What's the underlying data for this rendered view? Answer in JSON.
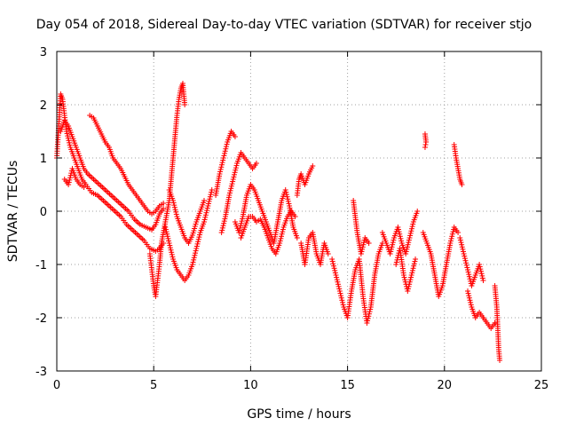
{
  "chart_data": {
    "type": "scatter",
    "title": "Day 054 of 2018, Sidereal Day-to-day VTEC variation (SDTVAR) for receiver stjo",
    "xlabel": "GPS time / hours",
    "ylabel": "SDTVAR / TECUs",
    "xlim": [
      0,
      25
    ],
    "ylim": [
      -3,
      3
    ],
    "xticks": [
      "0",
      "5",
      "10",
      "15",
      "20",
      "25"
    ],
    "yticks": [
      "3",
      "2",
      "1",
      "0",
      "-1",
      "-2",
      "-3"
    ],
    "grid": true,
    "marker": "+",
    "series": [
      {
        "name": "SDTVAR",
        "color": "#ff0000",
        "segments": [
          [
            [
              0.0,
              1.0
            ],
            [
              0.1,
              1.6
            ],
            [
              0.2,
              2.2
            ],
            [
              0.3,
              2.1
            ],
            [
              0.4,
              1.8
            ],
            [
              0.5,
              1.5
            ],
            [
              0.7,
              1.2
            ],
            [
              0.9,
              1.0
            ],
            [
              1.1,
              0.8
            ],
            [
              1.3,
              0.6
            ],
            [
              1.5,
              0.5
            ],
            [
              1.8,
              0.35
            ],
            [
              2.1,
              0.3
            ],
            [
              2.4,
              0.2
            ],
            [
              2.7,
              0.1
            ],
            [
              3.0,
              0.0
            ],
            [
              3.3,
              -0.1
            ],
            [
              3.6,
              -0.25
            ],
            [
              3.9,
              -0.35
            ],
            [
              4.2,
              -0.45
            ],
            [
              4.5,
              -0.55
            ],
            [
              4.8,
              -0.7
            ],
            [
              5.1,
              -0.75
            ],
            [
              5.3,
              -0.7
            ],
            [
              5.5,
              -0.6
            ]
          ],
          [
            [
              0.2,
              1.5
            ],
            [
              0.4,
              1.7
            ],
            [
              0.6,
              1.6
            ],
            [
              0.8,
              1.4
            ],
            [
              1.0,
              1.2
            ],
            [
              1.2,
              1.0
            ],
            [
              1.4,
              0.8
            ],
            [
              1.6,
              0.7
            ],
            [
              1.9,
              0.6
            ],
            [
              2.2,
              0.5
            ],
            [
              2.5,
              0.4
            ],
            [
              2.8,
              0.3
            ],
            [
              3.1,
              0.2
            ],
            [
              3.4,
              0.1
            ],
            [
              3.7,
              0.0
            ],
            [
              4.0,
              -0.15
            ],
            [
              4.3,
              -0.25
            ],
            [
              4.6,
              -0.3
            ],
            [
              4.9,
              -0.35
            ],
            [
              5.1,
              -0.25
            ],
            [
              5.3,
              -0.05
            ],
            [
              5.5,
              0.05
            ]
          ],
          [
            [
              1.7,
              1.8
            ],
            [
              1.9,
              1.75
            ],
            [
              2.1,
              1.6
            ],
            [
              2.3,
              1.45
            ],
            [
              2.5,
              1.3
            ],
            [
              2.7,
              1.2
            ],
            [
              2.9,
              1.0
            ],
            [
              3.1,
              0.9
            ],
            [
              3.3,
              0.8
            ],
            [
              3.5,
              0.65
            ],
            [
              3.7,
              0.5
            ],
            [
              3.9,
              0.4
            ],
            [
              4.1,
              0.3
            ],
            [
              4.3,
              0.2
            ],
            [
              4.5,
              0.1
            ],
            [
              4.7,
              0.0
            ],
            [
              4.9,
              -0.05
            ],
            [
              5.1,
              0.0
            ],
            [
              5.3,
              0.1
            ],
            [
              5.5,
              0.15
            ]
          ],
          [
            [
              0.4,
              0.6
            ],
            [
              0.6,
              0.5
            ],
            [
              0.8,
              0.8
            ],
            [
              1.0,
              0.6
            ],
            [
              1.2,
              0.5
            ],
            [
              1.4,
              0.45
            ]
          ],
          [
            [
              4.8,
              -0.8
            ],
            [
              4.9,
              -1.1
            ],
            [
              5.0,
              -1.4
            ],
            [
              5.1,
              -1.6
            ],
            [
              5.2,
              -1.3
            ],
            [
              5.3,
              -1.0
            ],
            [
              5.4,
              -0.6
            ],
            [
              5.6,
              -0.2
            ],
            [
              5.8,
              0.2
            ],
            [
              5.9,
              0.6
            ],
            [
              6.0,
              1.0
            ],
            [
              6.1,
              1.4
            ],
            [
              6.2,
              1.8
            ],
            [
              6.3,
              2.1
            ],
            [
              6.4,
              2.3
            ],
            [
              6.5,
              2.4
            ],
            [
              6.55,
              2.2
            ],
            [
              6.6,
              2.0
            ]
          ],
          [
            [
              5.6,
              -0.3
            ],
            [
              5.8,
              -0.6
            ],
            [
              6.0,
              -0.9
            ],
            [
              6.2,
              -1.1
            ],
            [
              6.4,
              -1.2
            ],
            [
              6.6,
              -1.3
            ],
            [
              6.8,
              -1.2
            ],
            [
              7.0,
              -1.0
            ],
            [
              7.2,
              -0.7
            ],
            [
              7.4,
              -0.4
            ],
            [
              7.6,
              -0.2
            ],
            [
              7.8,
              0.1
            ],
            [
              8.0,
              0.4
            ]
          ],
          [
            [
              5.8,
              0.4
            ],
            [
              6.0,
              0.2
            ],
            [
              6.2,
              -0.1
            ],
            [
              6.4,
              -0.3
            ],
            [
              6.6,
              -0.5
            ],
            [
              6.8,
              -0.6
            ],
            [
              7.0,
              -0.45
            ],
            [
              7.2,
              -0.2
            ],
            [
              7.4,
              0.0
            ],
            [
              7.6,
              0.2
            ]
          ],
          [
            [
              8.2,
              0.3
            ],
            [
              8.4,
              0.7
            ],
            [
              8.6,
              1.0
            ],
            [
              8.8,
              1.3
            ],
            [
              9.0,
              1.5
            ],
            [
              9.2,
              1.4
            ]
          ],
          [
            [
              8.5,
              -0.4
            ],
            [
              8.7,
              -0.1
            ],
            [
              8.9,
              0.3
            ],
            [
              9.1,
              0.6
            ],
            [
              9.3,
              0.9
            ],
            [
              9.5,
              1.1
            ],
            [
              9.7,
              1.0
            ],
            [
              9.9,
              0.9
            ],
            [
              10.1,
              0.8
            ],
            [
              10.3,
              0.9
            ]
          ],
          [
            [
              9.2,
              -0.2
            ],
            [
              9.4,
              -0.4
            ],
            [
              9.6,
              -0.1
            ],
            [
              9.8,
              0.3
            ],
            [
              10.0,
              0.5
            ],
            [
              10.2,
              0.4
            ],
            [
              10.4,
              0.2
            ],
            [
              10.6,
              0.0
            ],
            [
              10.8,
              -0.2
            ],
            [
              11.0,
              -0.4
            ],
            [
              11.2,
              -0.6
            ],
            [
              11.4,
              -0.2
            ],
            [
              11.6,
              0.2
            ],
            [
              11.8,
              0.4
            ],
            [
              12.0,
              0.1
            ],
            [
              12.2,
              -0.3
            ],
            [
              12.4,
              -0.5
            ]
          ],
          [
            [
              9.5,
              -0.5
            ],
            [
              9.7,
              -0.3
            ],
            [
              9.9,
              -0.1
            ],
            [
              10.1,
              -0.1
            ],
            [
              10.3,
              -0.2
            ],
            [
              10.5,
              -0.15
            ],
            [
              10.7,
              -0.3
            ],
            [
              10.9,
              -0.5
            ],
            [
              11.1,
              -0.7
            ],
            [
              11.3,
              -0.8
            ],
            [
              11.5,
              -0.6
            ],
            [
              11.7,
              -0.3
            ],
            [
              11.9,
              -0.1
            ],
            [
              12.1,
              0.0
            ],
            [
              12.3,
              -0.1
            ]
          ],
          [
            [
              12.4,
              0.3
            ],
            [
              12.5,
              0.6
            ],
            [
              12.6,
              0.7
            ],
            [
              12.8,
              0.5
            ],
            [
              13.0,
              0.7
            ],
            [
              13.2,
              0.85
            ]
          ],
          [
            [
              12.6,
              -0.6
            ],
            [
              12.8,
              -1.0
            ],
            [
              13.0,
              -0.5
            ],
            [
              13.2,
              -0.4
            ],
            [
              13.4,
              -0.8
            ],
            [
              13.6,
              -1.0
            ],
            [
              13.8,
              -0.6
            ],
            [
              14.0,
              -0.8
            ]
          ],
          [
            [
              14.2,
              -0.9
            ],
            [
              14.4,
              -1.2
            ],
            [
              14.6,
              -1.5
            ],
            [
              14.8,
              -1.8
            ],
            [
              15.0,
              -2.0
            ],
            [
              15.2,
              -1.5
            ],
            [
              15.4,
              -1.1
            ],
            [
              15.6,
              -0.9
            ],
            [
              15.8,
              -1.6
            ],
            [
              16.0,
              -2.1
            ],
            [
              16.2,
              -1.8
            ],
            [
              16.4,
              -1.2
            ],
            [
              16.6,
              -0.8
            ],
            [
              16.8,
              -0.6
            ]
          ],
          [
            [
              15.3,
              0.2
            ],
            [
              15.5,
              -0.4
            ],
            [
              15.7,
              -0.8
            ],
            [
              15.9,
              -0.5
            ],
            [
              16.1,
              -0.6
            ]
          ],
          [
            [
              16.8,
              -0.4
            ],
            [
              17.0,
              -0.6
            ],
            [
              17.2,
              -0.8
            ],
            [
              17.4,
              -0.5
            ],
            [
              17.6,
              -0.3
            ],
            [
              17.8,
              -0.6
            ],
            [
              18.0,
              -0.8
            ],
            [
              18.2,
              -0.5
            ],
            [
              18.4,
              -0.2
            ],
            [
              18.6,
              0.0
            ]
          ],
          [
            [
              17.5,
              -1.0
            ],
            [
              17.7,
              -0.7
            ],
            [
              17.9,
              -1.2
            ],
            [
              18.1,
              -1.5
            ],
            [
              18.3,
              -1.2
            ],
            [
              18.5,
              -0.9
            ]
          ],
          [
            [
              18.9,
              -0.4
            ],
            [
              19.1,
              -0.6
            ],
            [
              19.3,
              -0.8
            ],
            [
              19.5,
              -1.2
            ],
            [
              19.7,
              -1.6
            ],
            [
              19.9,
              -1.4
            ],
            [
              20.1,
              -1.0
            ],
            [
              20.3,
              -0.6
            ],
            [
              20.5,
              -0.3
            ],
            [
              20.7,
              -0.4
            ]
          ],
          [
            [
              19.0,
              1.45
            ],
            [
              19.05,
              1.3
            ],
            [
              19.0,
              1.2
            ]
          ],
          [
            [
              20.5,
              1.25
            ],
            [
              20.6,
              1.0
            ],
            [
              20.7,
              0.8
            ],
            [
              20.8,
              0.6
            ],
            [
              20.9,
              0.5
            ]
          ],
          [
            [
              20.8,
              -0.5
            ],
            [
              21.0,
              -0.8
            ],
            [
              21.2,
              -1.1
            ],
            [
              21.4,
              -1.4
            ],
            [
              21.6,
              -1.2
            ],
            [
              21.8,
              -1.0
            ],
            [
              22.0,
              -1.3
            ]
          ],
          [
            [
              21.2,
              -1.5
            ],
            [
              21.4,
              -1.8
            ],
            [
              21.6,
              -2.0
            ],
            [
              21.8,
              -1.9
            ],
            [
              22.0,
              -2.0
            ],
            [
              22.2,
              -2.1
            ],
            [
              22.4,
              -2.2
            ],
            [
              22.6,
              -2.1
            ]
          ],
          [
            [
              22.6,
              -1.4
            ],
            [
              22.7,
              -1.8
            ],
            [
              22.75,
              -2.2
            ],
            [
              22.8,
              -2.6
            ],
            [
              22.85,
              -2.8
            ]
          ]
        ]
      }
    ]
  }
}
